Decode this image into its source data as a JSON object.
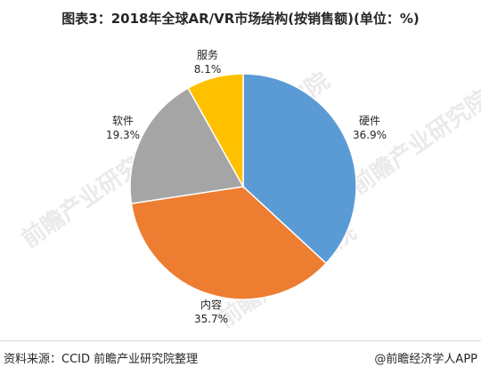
{
  "chart_data": {
    "type": "pie",
    "title": "图表3：2018年全球AR/VR市场结构(按销售额)(单位：%)",
    "slices": [
      {
        "label": "硬件",
        "value": 36.9,
        "value_label": "36.9%",
        "color": "#5b9bd5"
      },
      {
        "label": "内容",
        "value": 35.7,
        "value_label": "35.7%",
        "color": "#ed7d31"
      },
      {
        "label": "软件",
        "value": 19.3,
        "value_label": "19.3%",
        "color": "#a5a5a5"
      },
      {
        "label": "服务",
        "value": 8.1,
        "value_label": "8.1%",
        "color": "#ffc000"
      }
    ],
    "start_angle": "12 o'clock",
    "direction": "clockwise"
  },
  "footer": {
    "source": "资料来源：CCID 前瞻产业研究院整理",
    "brand": "@前瞻经济学人APP"
  },
  "watermark": {
    "text": "前瞻产业研究院"
  }
}
